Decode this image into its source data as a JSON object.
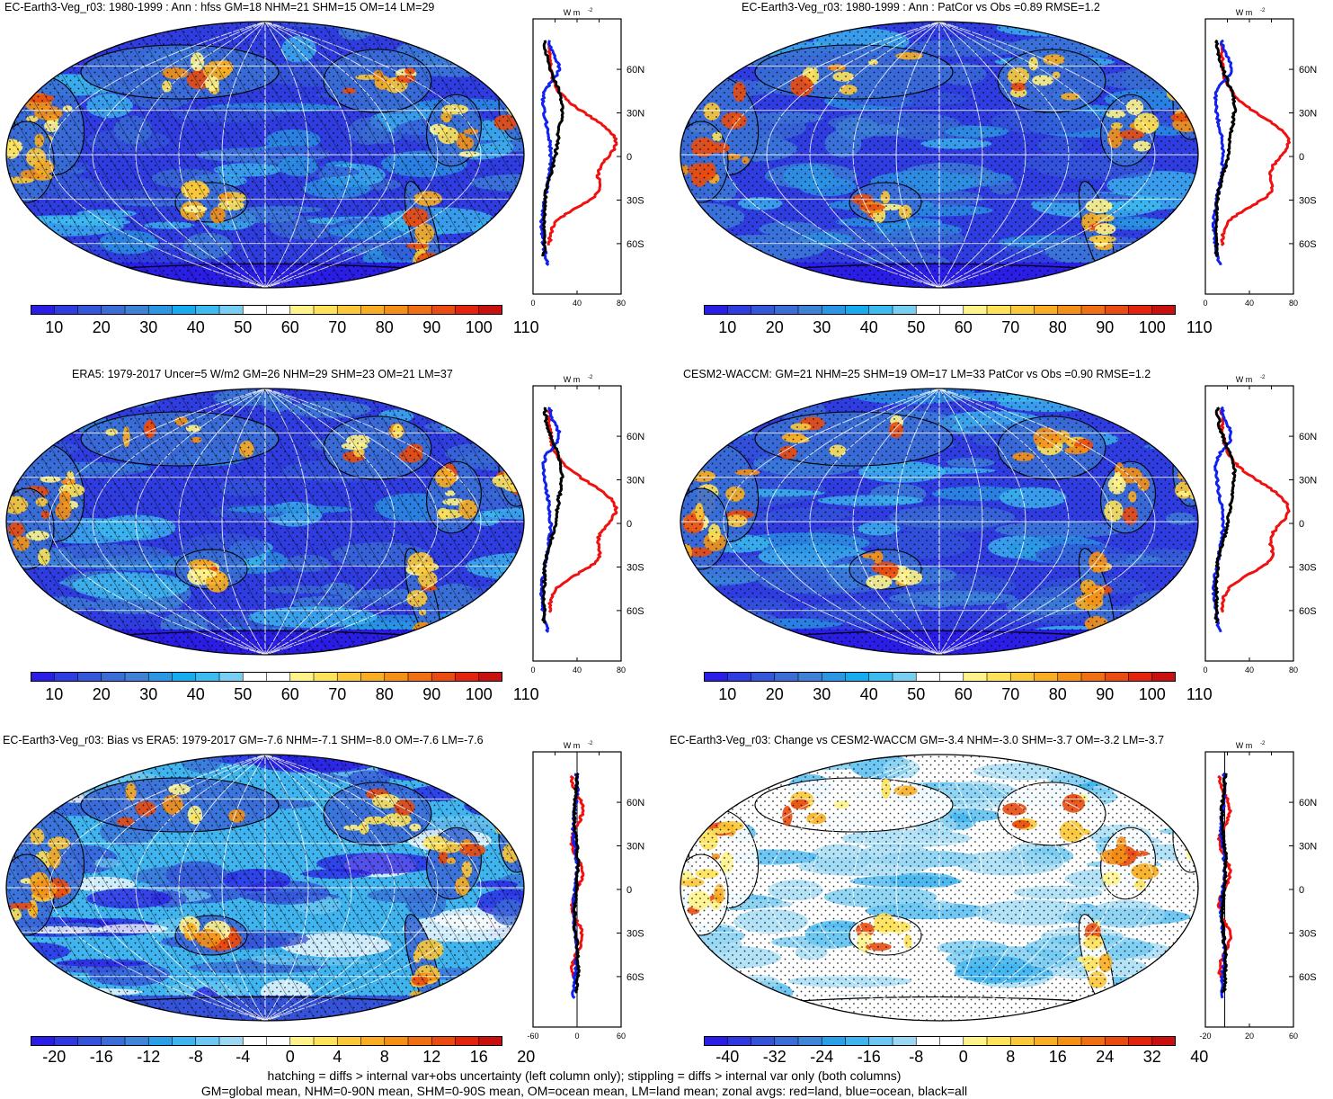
{
  "panels": [
    {
      "title": "EC-Earth3-Veg_r03: 1980-1999 : Ann : hfss GM=18 NHM=21 SHM=15 OM=14 LM=29",
      "zonal_unit": "W m",
      "zonal_unit_sup": "-2",
      "lat_labels": [
        "60N",
        "30N",
        "0",
        "30S",
        "60S"
      ],
      "x_ticks": [
        "0",
        "40",
        "80"
      ],
      "colorbar_labels": [
        "10",
        "20",
        "30",
        "40",
        "50",
        "60",
        "70",
        "80",
        "90",
        "100",
        "110"
      ]
    },
    {
      "title": "EC-Earth3-Veg_r03: 1980-1999 : Ann : PatCor vs Obs =0.89 RMSE=1.2",
      "zonal_unit": "W m",
      "zonal_unit_sup": "-2",
      "lat_labels": [
        "60N",
        "30N",
        "0",
        "30S",
        "60S"
      ],
      "x_ticks": [
        "0",
        "40",
        "80"
      ],
      "colorbar_labels": [
        "10",
        "20",
        "30",
        "40",
        "50",
        "60",
        "70",
        "80",
        "90",
        "100",
        "110"
      ]
    },
    {
      "title": "ERA5: 1979-2017 Uncer=5 W/m2 GM=26 NHM=29 SHM=23 OM=21 LM=37",
      "zonal_unit": "W m",
      "zonal_unit_sup": "-2",
      "lat_labels": [
        "60N",
        "30N",
        "0",
        "30S",
        "60S"
      ],
      "x_ticks": [
        "0",
        "40",
        "80"
      ],
      "colorbar_labels": [
        "10",
        "20",
        "30",
        "40",
        "50",
        "60",
        "70",
        "80",
        "90",
        "100",
        "110"
      ]
    },
    {
      "title": "CESM2-WACCM: GM=21 NHM=25 SHM=19 OM=17 LM=33 PatCor vs Obs =0.90 RMSE=1.2",
      "zonal_unit": "W m",
      "zonal_unit_sup": "-2",
      "lat_labels": [
        "60N",
        "30N",
        "0",
        "30S",
        "60S"
      ],
      "x_ticks": [
        "0",
        "40",
        "80"
      ],
      "colorbar_labels": [
        "10",
        "20",
        "30",
        "40",
        "50",
        "60",
        "70",
        "80",
        "90",
        "100",
        "110"
      ]
    },
    {
      "title": "EC-Earth3-Veg_r03: Bias vs ERA5: 1979-2017 GM=-7.6 NHM=-7.1 SHM=-8.0 OM=-7.6 LM=-7.6",
      "zonal_unit": "W m",
      "zonal_unit_sup": "-2",
      "lat_labels": [
        "60N",
        "30N",
        "0",
        "30S",
        "60S"
      ],
      "x_ticks": [
        "-60",
        "0",
        "60"
      ],
      "colorbar_labels": [
        "-20",
        "-16",
        "-12",
        "-8",
        "-4",
        "0",
        "4",
        "8",
        "12",
        "16",
        "20"
      ]
    },
    {
      "title": "EC-Earth3-Veg_r03: Change vs CESM2-WACCM GM=-3.4 NHM=-3.0 SHM=-3.7 OM=-3.2 LM=-3.7",
      "zonal_unit": "W m",
      "zonal_unit_sup": "-2",
      "lat_labels": [
        "60N",
        "30N",
        "0",
        "30S",
        "60S"
      ],
      "x_ticks": [
        "-20",
        "20",
        "60"
      ],
      "colorbar_labels": [
        "-40",
        "-32",
        "-24",
        "-16",
        "-8",
        "0",
        "8",
        "16",
        "24",
        "32",
        "40"
      ]
    }
  ],
  "colors": {
    "seq": [
      "#2a1de6",
      "#2f3ce0",
      "#3456d9",
      "#3a6ed6",
      "#3e82d8",
      "#2a96e4",
      "#16aaee",
      "#3cbbf0",
      "#78cdf2",
      "#ffffff",
      "#ffffff",
      "#fff38a",
      "#fde25a",
      "#fbc83a",
      "#f8ad22",
      "#f49016",
      "#ef6f12",
      "#e94b10",
      "#e2230e",
      "#c8100e"
    ],
    "div": [
      "#2a1de6",
      "#3038e0",
      "#3552da",
      "#3b6dd8",
      "#3f85da",
      "#2aa0e8",
      "#3fb4ef",
      "#6cc8f2",
      "#9bd8f4",
      "#ffffff",
      "#ffffff",
      "#fff38a",
      "#fde25a",
      "#fbc83a",
      "#f8ad22",
      "#f49016",
      "#ef6f12",
      "#e94b10",
      "#e2230e",
      "#c8100e"
    ],
    "land_line": "#f01010",
    "ocean_line": "#1020f0",
    "all_line": "#000000"
  },
  "footer": {
    "line1": "hatching = diffs > internal var+obs uncertainty (left column only); stippling = diffs > internal var only (both columns)",
    "line2": "GM=global mean, NHM=0-90N mean, SHM=0-90S mean, OM=ocean mean, LM=land mean; zonal avgs: red=land, blue=ocean, black=all"
  }
}
